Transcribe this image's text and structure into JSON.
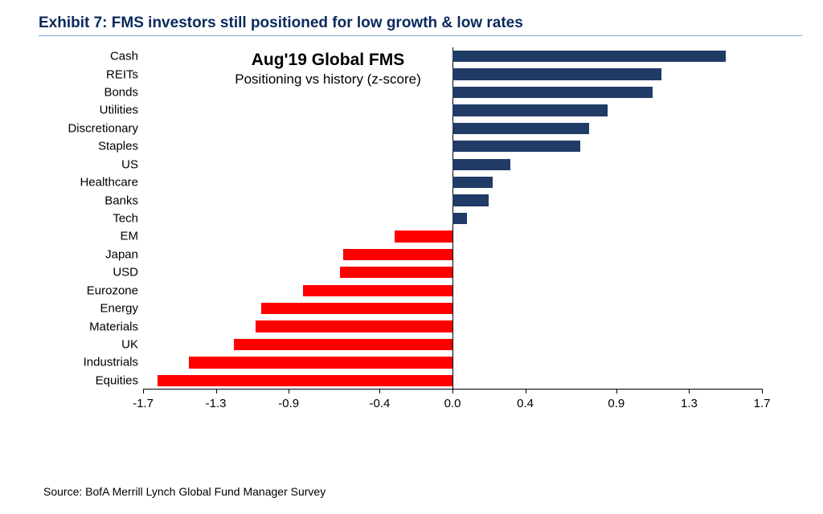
{
  "exhibit_title": "Exhibit 7: FMS investors still positioned for low growth & low rates",
  "source": "Source: BofA Merrill Lynch Global Fund Manager Survey",
  "chart": {
    "type": "bar-horizontal",
    "title_main": "Aug'19 Global FMS",
    "title_sub": "Positioning vs history (z-score)",
    "title_color": "#0a2a5c",
    "title_main_fontsize": 21,
    "title_sub_fontsize": 17,
    "label_fontsize": 15,
    "positive_color": "#1f3b66",
    "negative_color": "#ff0000",
    "axis_color": "#000000",
    "background_color": "#ffffff",
    "xmin": -1.7,
    "xmax": 1.7,
    "xticks": [
      -1.7,
      -1.3,
      -0.9,
      -0.4,
      0.0,
      0.4,
      0.9,
      1.3,
      1.7
    ],
    "bar_thickness_ratio": 0.64,
    "categories": [
      {
        "label": "Cash",
        "value": 1.5
      },
      {
        "label": "REITs",
        "value": 1.15
      },
      {
        "label": "Bonds",
        "value": 1.1
      },
      {
        "label": "Utilities",
        "value": 0.85
      },
      {
        "label": "Discretionary",
        "value": 0.75
      },
      {
        "label": "Staples",
        "value": 0.7
      },
      {
        "label": "US",
        "value": 0.32
      },
      {
        "label": "Healthcare",
        "value": 0.22
      },
      {
        "label": "Banks",
        "value": 0.2
      },
      {
        "label": "Tech",
        "value": 0.08
      },
      {
        "label": "EM",
        "value": -0.32
      },
      {
        "label": "Japan",
        "value": -0.6
      },
      {
        "label": "USD",
        "value": -0.62
      },
      {
        "label": "Eurozone",
        "value": -0.82
      },
      {
        "label": "Energy",
        "value": -1.05
      },
      {
        "label": "Materials",
        "value": -1.08
      },
      {
        "label": "UK",
        "value": -1.2
      },
      {
        "label": "Industrials",
        "value": -1.45
      },
      {
        "label": "Equities",
        "value": -1.62
      }
    ]
  }
}
